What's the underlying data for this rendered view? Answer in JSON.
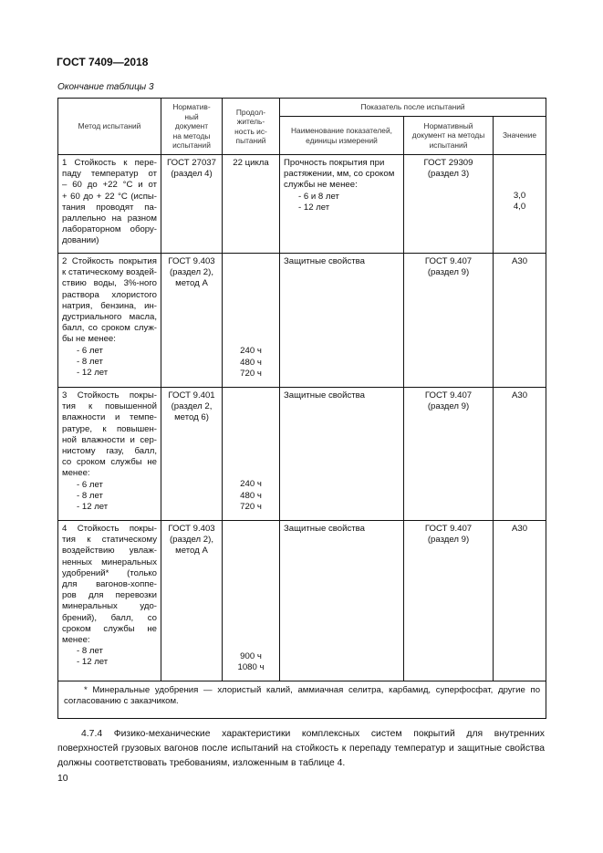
{
  "header": {
    "doc_title": "ГОСТ 7409—2018",
    "caption": "Окончание таблицы 3"
  },
  "table": {
    "columns": {
      "method": "Метод испытаний",
      "norm_doc": [
        "Норматив-",
        "ный",
        "документ",
        "на методы",
        "испытаний"
      ],
      "duration": [
        "Продол-",
        "житель-",
        "ность ис-",
        "пытаний"
      ],
      "group": "Показатель после испытаний",
      "indicator_name": [
        "Наименование показателей,",
        "единицы измерений"
      ],
      "indicator_doc": [
        "Нормативный",
        "документ на методы",
        "испытаний"
      ],
      "value": "Значение"
    },
    "rows": [
      {
        "method": [
          "1 Стойкость к пере-",
          "паду температур от",
          "– 60 до +22 °С и от",
          "+ 60 до + 22 °С (испы-",
          "тания проводят па-",
          "раллельно на разном",
          "лабораторном обору-",
          "довании)"
        ],
        "norm_doc": [
          "ГОСТ 27037",
          "(раздел 4)"
        ],
        "duration": [
          "22 цикла"
        ],
        "indicator_name": [
          "Прочность покрытия при",
          "растяжении, мм, со сроком",
          "службы не менее:",
          "- 6 и 8 лет",
          "- 12 лет"
        ],
        "indicator_doc": [
          "ГОСТ 29309",
          "(раздел 3)"
        ],
        "value": [
          "3,0",
          "4,0"
        ]
      },
      {
        "method": [
          "2 Стойкость покрытия",
          "к статическому воздей-",
          "ствию воды, 3%-ного",
          "раствора хлористого",
          "натрия, бензина, ин-",
          "дустриального масла,",
          "балл, со сроком служ-",
          "бы не менее:",
          "- 6 лет",
          "- 8 лет",
          "- 12 лет"
        ],
        "norm_doc": [
          "ГОСТ 9.403",
          "(раздел 2),",
          "метод А"
        ],
        "duration": [
          "240 ч",
          "480 ч",
          "720 ч"
        ],
        "indicator_name": [
          "Защитные свойства"
        ],
        "indicator_doc": [
          "ГОСТ 9.407",
          "(раздел 9)"
        ],
        "value": [
          "А30"
        ]
      },
      {
        "method": [
          "3 Стойкость покры-",
          "тия к повышенной",
          "влажности и темпе-",
          "ратуре, к повышен-",
          "ной влажности и сер-",
          "нистому газу, балл,",
          "со сроком службы не",
          "менее:",
          "- 6 лет",
          "- 8 лет",
          "- 12 лет"
        ],
        "norm_doc": [
          "ГОСТ 9.401",
          "(раздел 2,",
          "метод 6)"
        ],
        "duration": [
          "240 ч",
          "480 ч",
          "720 ч"
        ],
        "indicator_name": [
          "Защитные свойства"
        ],
        "indicator_doc": [
          "ГОСТ 9.407",
          "(раздел 9)"
        ],
        "value": [
          "А30"
        ]
      },
      {
        "method": [
          "4 Стойкость покры-",
          "тия к статическому",
          "воздействию увлаж-",
          "ненных минеральных",
          "удобрений* (только",
          "для вагонов-хоппе-",
          "ров для перевозки",
          "минеральных удо-",
          "брений), балл, со",
          "сроком службы не",
          "менее:",
          "- 8 лет",
          "- 12 лет"
        ],
        "norm_doc": [
          "ГОСТ 9.403",
          "(раздел 2),",
          "метод А"
        ],
        "duration": [
          "900 ч",
          "1080 ч"
        ],
        "indicator_name": [
          "Защитные свойства"
        ],
        "indicator_doc": [
          "ГОСТ 9.407",
          "(раздел 9)"
        ],
        "value": [
          "А30"
        ]
      }
    ],
    "footnote": "* Минеральные удобрения — хлористый калий, аммиачная селитра, карбамид, суперфосфат, другие по согласованию с заказчиком."
  },
  "paragraph": "4.7.4 Физико-механические характеристики комплексных систем покрытий для внутренних поверхностей грузовых вагонов после испытаний на стойкость к перепаду температур и защитные свойства должны соответствовать требованиям, изложенным в таблице 4.",
  "page_number": "10"
}
